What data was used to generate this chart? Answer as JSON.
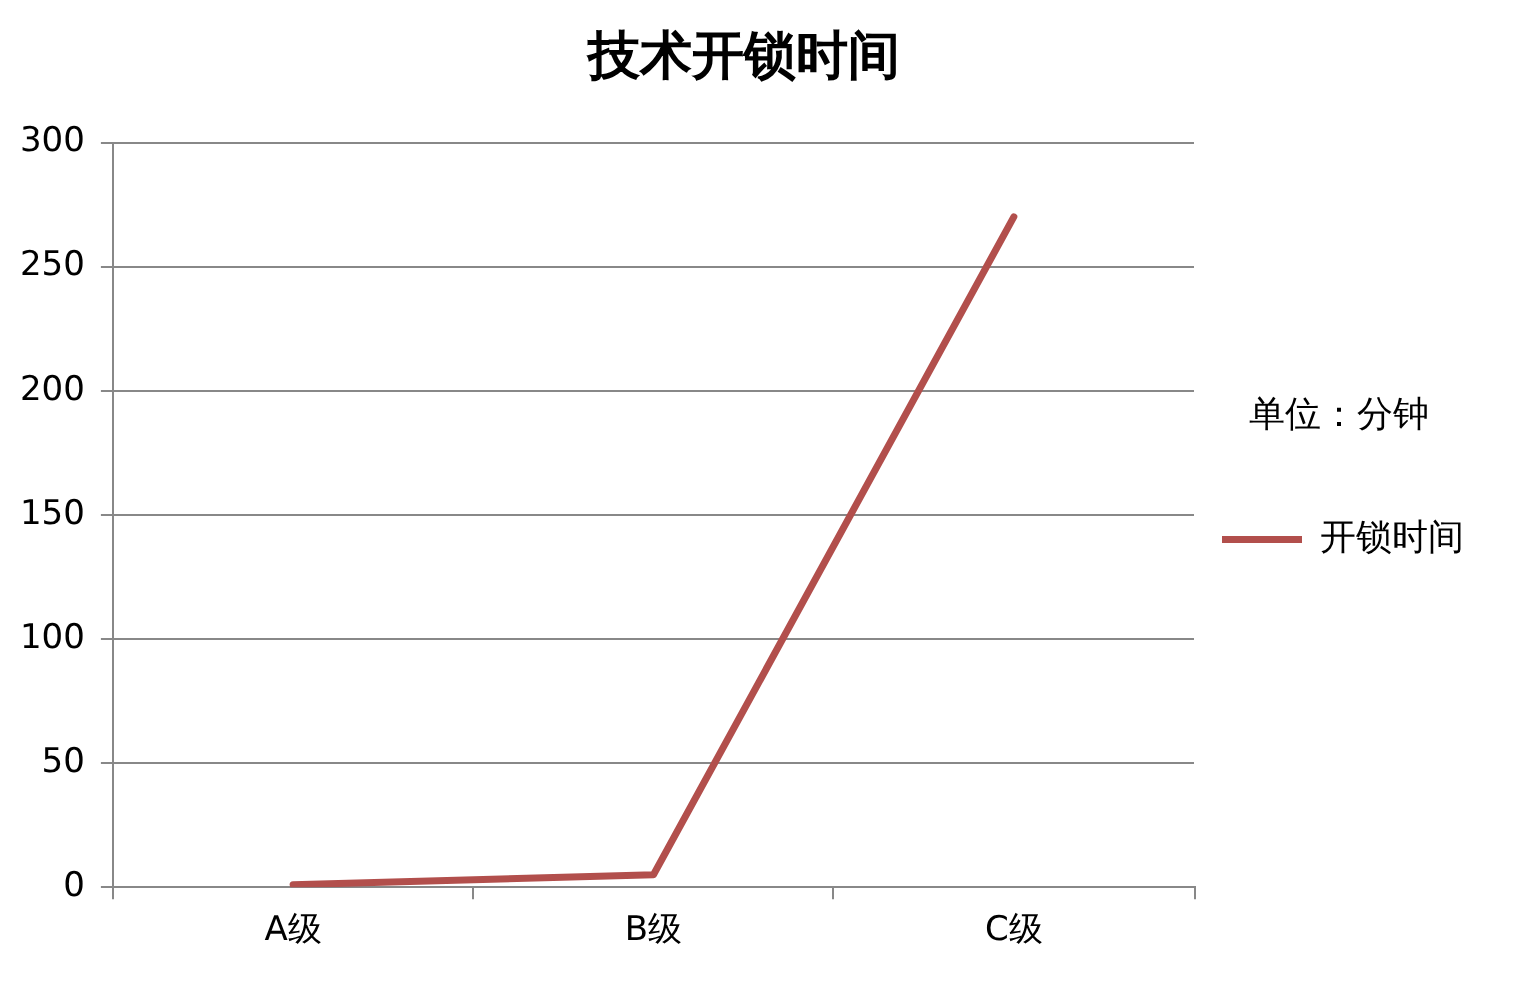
{
  "chart_data": {
    "type": "line",
    "title": "技术开锁时间",
    "legend_title": "单位：分钟",
    "categories": [
      "A级",
      "B级",
      "C级"
    ],
    "series": [
      {
        "name": "开锁时间",
        "color": "#b24f4c",
        "values": [
          1,
          5,
          270
        ]
      }
    ],
    "ylim": [
      0,
      300
    ],
    "yticks": [
      0,
      50,
      100,
      150,
      200,
      250,
      300
    ],
    "grid": "y",
    "legend": "right",
    "marker": "none",
    "line_style": "solid"
  }
}
